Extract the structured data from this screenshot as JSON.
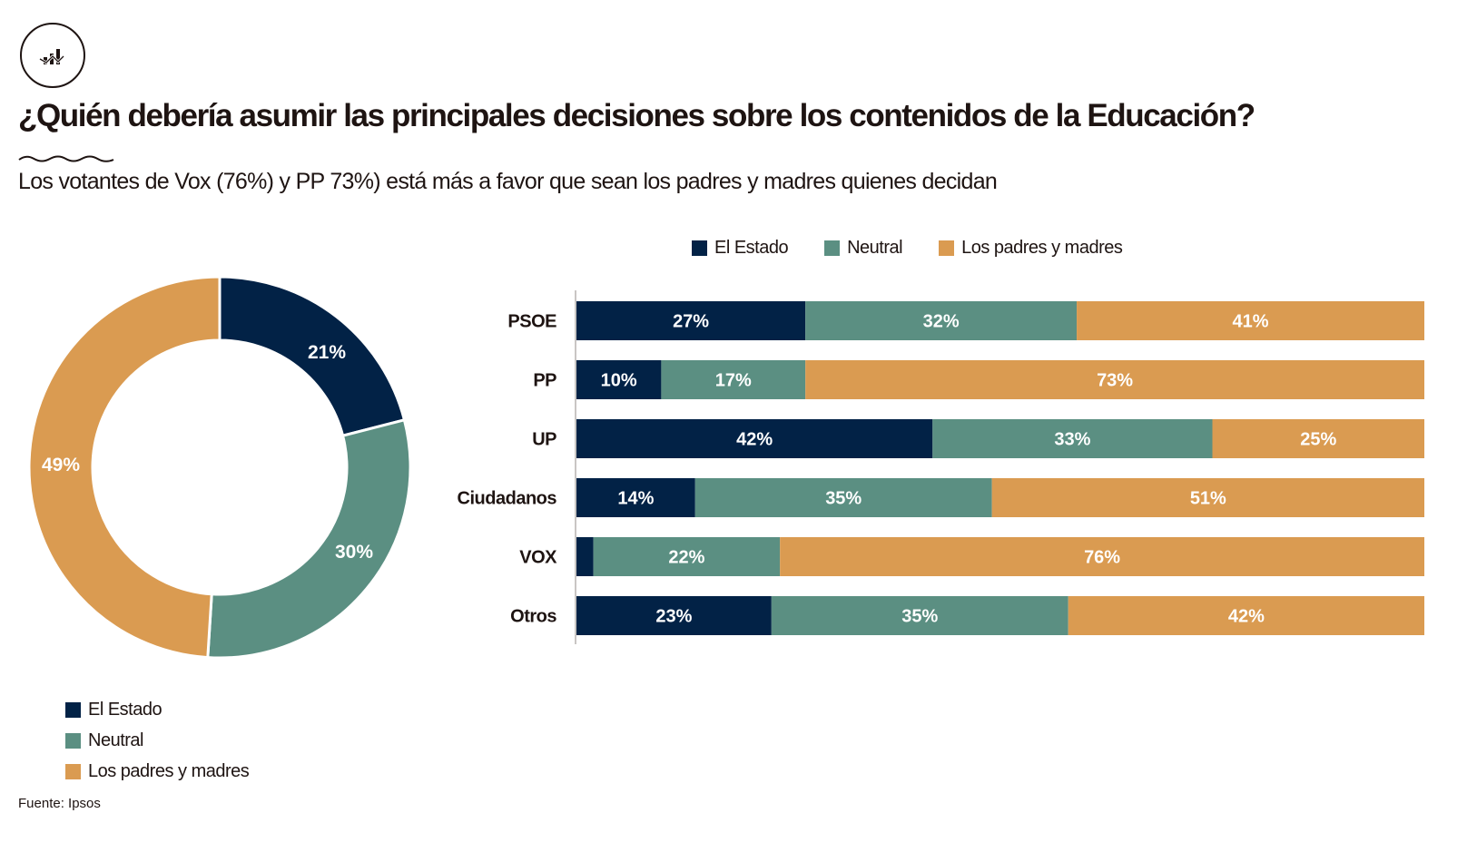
{
  "header": {
    "icon": "chart-bars-trend-icon",
    "title": "¿Quién debería asumir las principales decisiones sobre los contenidos de la Educación?",
    "subtitle": "Los votantes de Vox (76%) y PP 73%) está más a favor que sean los padres y madres quienes decidan"
  },
  "colors": {
    "estado": "#022246",
    "neutral": "#5b8f82",
    "padres": "#da9b51",
    "text": "#1e1412"
  },
  "legend": [
    {
      "label": "El Estado",
      "color": "#022246"
    },
    {
      "label": "Neutral",
      "color": "#5b8f82"
    },
    {
      "label": "Los padres y madres",
      "color": "#da9b51"
    }
  ],
  "source": "Fuente: Ipsos",
  "chart_data": [
    {
      "type": "pie",
      "subtype": "donut",
      "title": "",
      "categories": [
        "El Estado",
        "Neutral",
        "Los padres y madres"
      ],
      "values": [
        21,
        30,
        49
      ],
      "labels": [
        "21%",
        "30%",
        "49%"
      ],
      "legend_position": "bottom-left"
    },
    {
      "type": "bar",
      "subtype": "stacked-horizontal-100",
      "title": "",
      "categories": [
        "PSOE",
        "PP",
        "UP",
        "Ciudadanos",
        "VOX",
        "Otros"
      ],
      "series": [
        {
          "name": "El Estado",
          "values": [
            27,
            10,
            42,
            14,
            2,
            23
          ]
        },
        {
          "name": "Neutral",
          "values": [
            32,
            17,
            33,
            35,
            22,
            35
          ]
        },
        {
          "name": "Los padres y madres",
          "values": [
            41,
            73,
            25,
            51,
            76,
            42
          ]
        }
      ],
      "xlim": [
        0,
        100
      ],
      "grid": false,
      "legend_position": "top"
    }
  ]
}
